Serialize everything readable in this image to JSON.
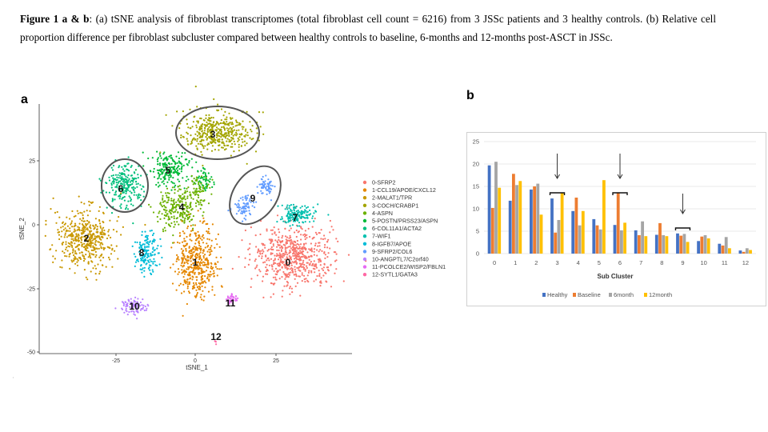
{
  "caption": {
    "lead": "Figure 1 a & b",
    "text": ": (a) tSNE analysis of fibroblast transcriptomes (total fibroblast cell count = 6216) from 3 JSSc patients and 3 healthy controls. (b) Relative cell proportion difference per fibroblast subcluster compared between healthy controls to baseline, 6-months and 12-months post-ASCT in JSSc."
  },
  "panel_a": {
    "label": "a",
    "xlabel": "tSNE_1",
    "ylabel": "tSNE_2",
    "xticks": [
      "-25",
      "0",
      "25"
    ],
    "yticks": [
      "25",
      "0",
      "-25",
      "-50"
    ],
    "clusters": [
      {
        "id": "0",
        "name": "0-SFRP2",
        "color": "#F8766D"
      },
      {
        "id": "1",
        "name": "1-CCL19/APOE/CXCL12",
        "color": "#E58700"
      },
      {
        "id": "2",
        "name": "2-MALAT1/TPR",
        "color": "#C99800"
      },
      {
        "id": "3",
        "name": "3-COCH/CRABP1",
        "color": "#A3A500"
      },
      {
        "id": "4",
        "name": "4-ASPN",
        "color": "#6BB100"
      },
      {
        "id": "5",
        "name": "5-POSTN/PRSS23/ASPN",
        "color": "#00BA38"
      },
      {
        "id": "6",
        "name": "6-COL11A1/ACTA2",
        "color": "#00BF7D"
      },
      {
        "id": "7",
        "name": "7-WIF1",
        "color": "#00C0AF"
      },
      {
        "id": "8",
        "name": "8-IGFB7/APOE",
        "color": "#00BCD8"
      },
      {
        "id": "9",
        "name": "9-SFRP2/COL6",
        "color": "#619CFF"
      },
      {
        "id": "10",
        "name": "10-ANGPTL7/C2orf40",
        "color": "#B983FF"
      },
      {
        "id": "11",
        "name": "11-PCOLCE2/WISP2/FBLN1",
        "color": "#E76BF3"
      },
      {
        "id": "12",
        "name": "12-SYTL1/GATA3",
        "color": "#FF67A4"
      }
    ]
  },
  "panel_b": {
    "label": "b",
    "chart_data": {
      "type": "bar",
      "title": "",
      "xlabel": "Sub Cluster",
      "ylabel": "",
      "ylim": [
        0,
        25
      ],
      "yticks": [
        0,
        5,
        10,
        15,
        20,
        25
      ],
      "categories": [
        "0",
        "1",
        "2",
        "3",
        "4",
        "5",
        "6",
        "7",
        "8",
        "9",
        "10",
        "11",
        "12"
      ],
      "series": [
        {
          "name": "Healthy",
          "color": "#4472C4",
          "values": [
            19.7,
            11.8,
            14.3,
            12.3,
            9.5,
            7.7,
            6.4,
            5.2,
            4.2,
            4.5,
            2.8,
            2.2,
            0.7
          ]
        },
        {
          "name": "Baseline",
          "color": "#ED7D31",
          "values": [
            10.2,
            17.8,
            15.0,
            4.7,
            12.5,
            6.3,
            13.6,
            4.1,
            6.8,
            4.0,
            3.8,
            1.8,
            0.4
          ]
        },
        {
          "name": "6month",
          "color": "#A5A5A5",
          "values": [
            20.5,
            15.3,
            15.6,
            7.5,
            6.3,
            5.4,
            5.2,
            7.2,
            4.1,
            4.4,
            4.1,
            3.7,
            1.2
          ]
        },
        {
          "name": "12month",
          "color": "#FFC000",
          "values": [
            14.7,
            16.2,
            8.7,
            13.5,
            9.5,
            16.4,
            6.9,
            3.9,
            3.9,
            2.6,
            3.4,
            1.2,
            0.8
          ]
        }
      ],
      "annotations": [
        "arrow+bracket at 3",
        "arrow+bracket at 6",
        "arrow+bracket at 9"
      ]
    }
  }
}
